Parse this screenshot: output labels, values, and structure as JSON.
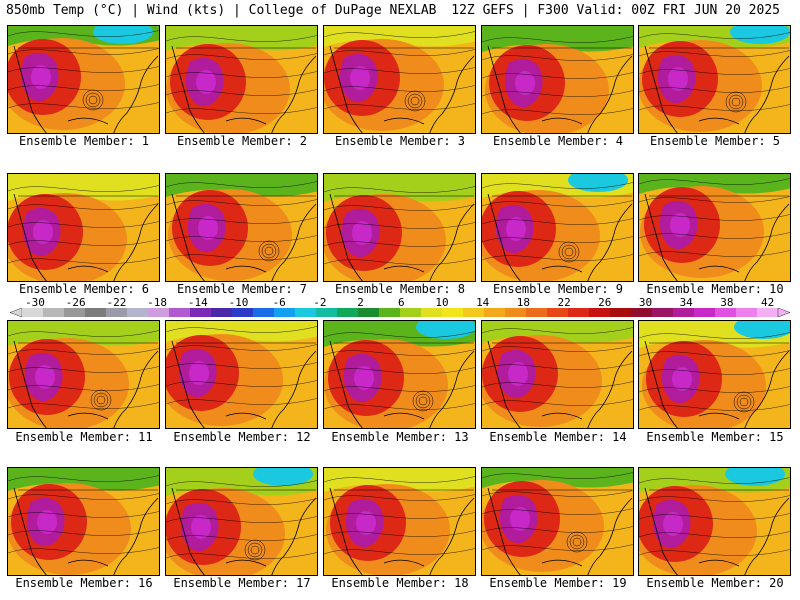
{
  "header": {
    "left": "850mb Temp (°C) | Wind (kts) | College of DuPage NEXLAB",
    "right": "12Z GEFS | F300 Valid: 00Z FRI JUN 20 2025"
  },
  "members": [
    {
      "label": "Ensemble Member: 1"
    },
    {
      "label": "Ensemble Member: 2"
    },
    {
      "label": "Ensemble Member: 3"
    },
    {
      "label": "Ensemble Member: 4"
    },
    {
      "label": "Ensemble Member: 5"
    },
    {
      "label": "Ensemble Member: 6"
    },
    {
      "label": "Ensemble Member: 7"
    },
    {
      "label": "Ensemble Member: 8"
    },
    {
      "label": "Ensemble Member: 9"
    },
    {
      "label": "Ensemble Member: 10"
    },
    {
      "label": "Ensemble Member: 11"
    },
    {
      "label": "Ensemble Member: 12"
    },
    {
      "label": "Ensemble Member: 13"
    },
    {
      "label": "Ensemble Member: 14"
    },
    {
      "label": "Ensemble Member: 15"
    },
    {
      "label": "Ensemble Member: 16"
    },
    {
      "label": "Ensemble Member: 17"
    },
    {
      "label": "Ensemble Member: 18"
    },
    {
      "label": "Ensemble Member: 19"
    },
    {
      "label": "Ensemble Member: 20"
    }
  ],
  "colorbar": {
    "ticks": [
      "-30",
      "-26",
      "-22",
      "-18",
      "-14",
      "-10",
      "-6",
      "-2",
      "2",
      "6",
      "10",
      "14",
      "18",
      "22",
      "26",
      "30",
      "34",
      "38",
      "42"
    ],
    "colors": [
      "#d8d8d8",
      "#b8b8b8",
      "#989898",
      "#7c7c7c",
      "#9a9aa8",
      "#b4b4cc",
      "#d09ce0",
      "#b25ad0",
      "#7a2ab4",
      "#4a28a8",
      "#2a3cc8",
      "#1a6ce8",
      "#12a0f0",
      "#1ac8e0",
      "#14bca0",
      "#10a85a",
      "#1c8c30",
      "#5cb41c",
      "#a4d01c",
      "#e0e020",
      "#f4e41c",
      "#f4c81c",
      "#f4a81c",
      "#f08c1c",
      "#ec6c1c",
      "#e84818",
      "#dc2814",
      "#c81010",
      "#a80c0c",
      "#900c2c",
      "#9c1464",
      "#b01c9c",
      "#c828c8",
      "#e050e0",
      "#ec80ec",
      "#f4b0f4"
    ]
  }
}
